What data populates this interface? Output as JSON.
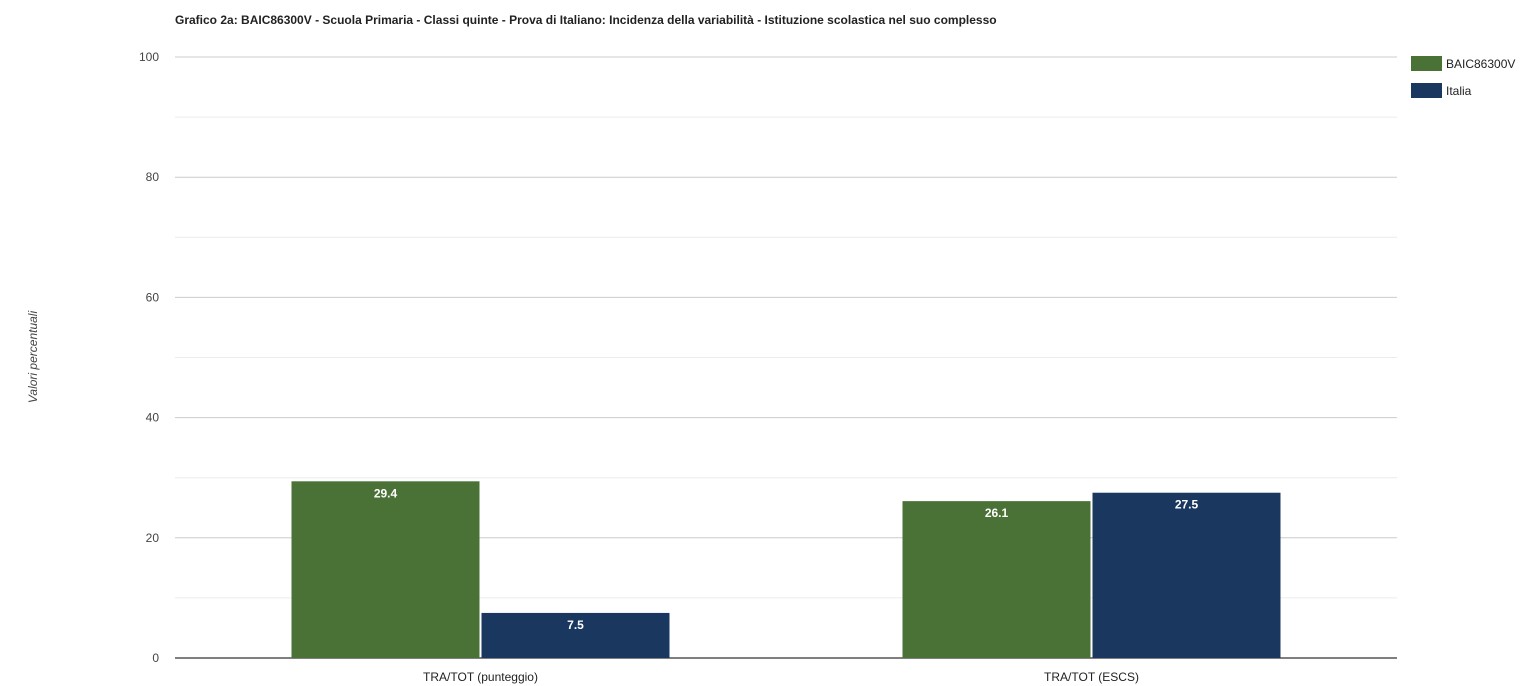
{
  "chart_data": {
    "type": "bar",
    "title": "Grafico 2a: BAIC86300V - Scuola Primaria - Classi quinte - Prova di Italiano: Incidenza della variabilità - Istituzione scolastica nel suo complesso",
    "ylabel": "Valori percentuali",
    "xlabel": "",
    "ylim": [
      0,
      100
    ],
    "yticks": [
      0,
      20,
      40,
      60,
      80,
      100
    ],
    "grid": true,
    "legend_position": "top-right",
    "categories": [
      "TRA/TOT (punteggio)",
      "TRA/TOT (ESCS)"
    ],
    "series": [
      {
        "name": "BAIC86300V",
        "color": "#4a7236",
        "values": [
          29.4,
          26.1
        ],
        "labels": [
          "29.4",
          "26.1"
        ]
      },
      {
        "name": "Italia",
        "color": "#19375f",
        "values": [
          7.5,
          27.5
        ],
        "labels": [
          "7.5",
          "27.5"
        ]
      }
    ]
  }
}
